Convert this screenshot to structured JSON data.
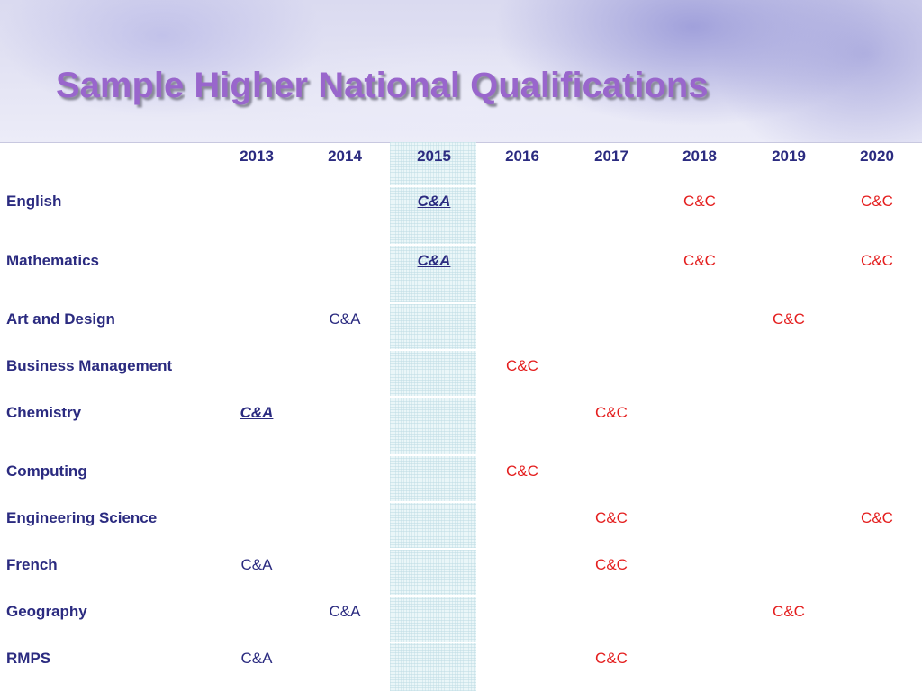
{
  "title": "Sample Higher National Qualifications",
  "colors": {
    "title": "#9966cc",
    "text": "#2b2b80",
    "cc": "#e41e1e"
  },
  "years": [
    "2013",
    "2014",
    "2015",
    "2016",
    "2017",
    "2018",
    "2019",
    "2020"
  ],
  "rows": [
    {
      "subject": "English",
      "cells": [
        {
          "year": "2015",
          "text": "C&A",
          "style": "bold-italic-underline",
          "color": "blue"
        },
        {
          "year": "2018",
          "text": "C&C",
          "style": "normal",
          "color": "red"
        },
        {
          "year": "2020",
          "text": "C&C",
          "style": "normal",
          "color": "red"
        }
      ]
    },
    {
      "subject": "Mathematics",
      "cells": [
        {
          "year": "2015",
          "text": "C&A",
          "style": "bold-italic-underline",
          "color": "blue"
        },
        {
          "year": "2018",
          "text": "C&C",
          "style": "normal",
          "color": "red"
        },
        {
          "year": "2020",
          "text": "C&C",
          "style": "normal",
          "color": "red"
        }
      ]
    },
    {
      "subject": "Art and Design",
      "cells": [
        {
          "year": "2014",
          "text": "C&A",
          "style": "normal",
          "color": "blue"
        },
        {
          "year": "2019",
          "text": "C&C",
          "style": "normal",
          "color": "red"
        }
      ]
    },
    {
      "subject": "Business Management",
      "cells": [
        {
          "year": "2016",
          "text": "C&C",
          "style": "normal",
          "color": "red"
        }
      ]
    },
    {
      "subject": "Chemistry",
      "cells": [
        {
          "year": "2013",
          "text": "C&A",
          "style": "bold-italic-underline",
          "color": "blue"
        },
        {
          "year": "2017",
          "text": "C&C",
          "style": "normal",
          "color": "red"
        }
      ]
    },
    {
      "subject": "Computing",
      "cells": [
        {
          "year": "2016",
          "text": "C&C",
          "style": "normal",
          "color": "red"
        }
      ]
    },
    {
      "subject": "Engineering Science",
      "cells": [
        {
          "year": "2017",
          "text": "C&C",
          "style": "normal",
          "color": "red"
        },
        {
          "year": "2020",
          "text": "C&C",
          "style": "normal",
          "color": "red"
        }
      ]
    },
    {
      "subject": "French",
      "cells": [
        {
          "year": "2013",
          "text": "C&A",
          "style": "normal",
          "color": "blue"
        },
        {
          "year": "2017",
          "text": "C&C",
          "style": "normal",
          "color": "red"
        }
      ]
    },
    {
      "subject": "Geography",
      "cells": [
        {
          "year": "2014",
          "text": "C&A",
          "style": "normal",
          "color": "blue"
        },
        {
          "year": "2019",
          "text": "C&C",
          "style": "normal",
          "color": "red"
        }
      ]
    },
    {
      "subject": "RMPS",
      "cells": [
        {
          "year": "2013",
          "text": "C&A",
          "style": "normal",
          "color": "blue"
        },
        {
          "year": "2017",
          "text": "C&C",
          "style": "normal",
          "color": "red"
        }
      ]
    }
  ]
}
